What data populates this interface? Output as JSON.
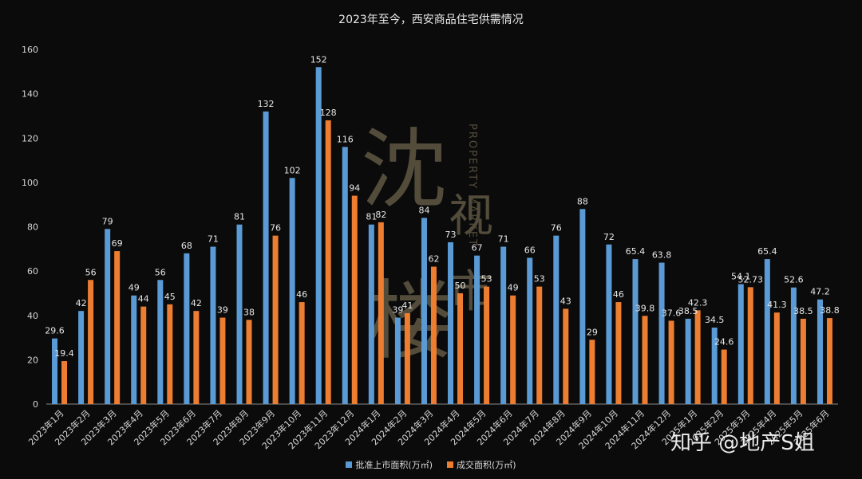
{
  "chart_data": {
    "type": "bar",
    "title": "2023年至今，西安商品住宅供需情况",
    "categories": [
      "2023年1月",
      "2023年2月",
      "2023年3月",
      "2023年4月",
      "2023年5月",
      "2023年6月",
      "2023年7月",
      "2023年8月",
      "2023年9月",
      "2023年10月",
      "2023年11月",
      "2023年12月",
      "2024年1月",
      "2024年2月",
      "2024年3月",
      "2024年4月",
      "2024年5月",
      "2024年6月",
      "2024年7月",
      "2024年8月",
      "2024年9月",
      "2024年10月",
      "2024年11月",
      "2024年12月",
      "2025年1月",
      "2025年2月",
      "2025年3月",
      "2025年4月",
      "2025年5月",
      "2025年6月"
    ],
    "series": [
      {
        "name": "批准上市面积(万㎡)",
        "color": "#5b9bd5",
        "values": [
          29.6,
          42,
          79,
          49,
          56,
          68,
          71,
          81,
          132,
          102,
          152,
          116,
          81,
          39,
          84,
          73,
          67,
          71,
          66,
          76,
          88,
          72,
          65.4,
          63.8,
          38.5,
          34.5,
          54.1,
          65.4,
          52.6,
          47.2
        ]
      },
      {
        "name": "成交面积(万㎡)",
        "color": "#ed7d31",
        "values": [
          19.4,
          56,
          69,
          44,
          45,
          42,
          39,
          38,
          76,
          46,
          128,
          94,
          82,
          41,
          62,
          50,
          53,
          49,
          53,
          43,
          29,
          46,
          39.8,
          37.6,
          42.3,
          24.6,
          52.73,
          41.3,
          38.5,
          38.8
        ]
      }
    ],
    "yticks": [
      0,
      20,
      40,
      60,
      80,
      100,
      120,
      140,
      160
    ],
    "ylim": [
      0,
      160
    ],
    "grid": false,
    "legend_position": "bottom"
  },
  "watermark": {
    "big1": "沈",
    "big2": "楼",
    "small1": "视",
    "small2": "市",
    "en": "PROPERTY MARKET",
    "credit": "知乎 @地产S姐"
  }
}
